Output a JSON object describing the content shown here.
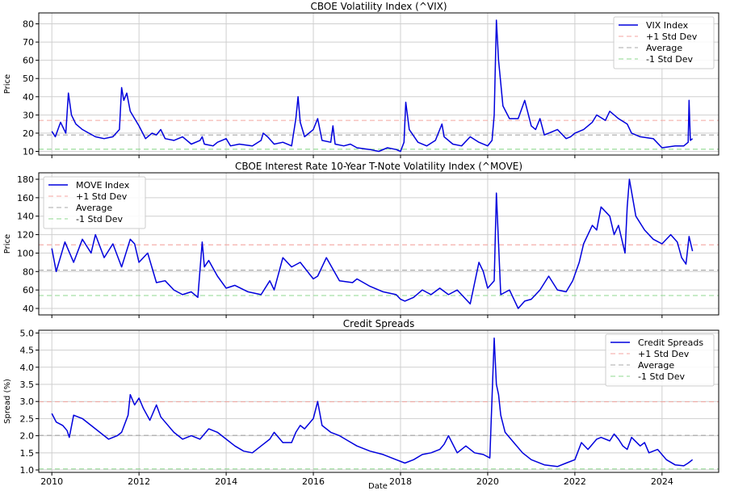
{
  "figure": {
    "xlabel": "Date"
  },
  "chart_data": [
    {
      "type": "line",
      "title": "CBOE Volatility Index (^VIX)",
      "ylabel": "Price",
      "xlim": [
        2009.7,
        2025.3
      ],
      "ylim": [
        8,
        86
      ],
      "yticks": [
        10,
        20,
        30,
        40,
        50,
        60,
        70,
        80
      ],
      "xticks": [
        2010,
        2012,
        2014,
        2016,
        2018,
        2020,
        2022,
        2024
      ],
      "grid": true,
      "legend_position": "top-right",
      "series": [
        {
          "name": "VIX Index",
          "color": "#0000dd",
          "x": [
            2010.0,
            2010.08,
            2010.2,
            2010.32,
            2010.38,
            2010.45,
            2010.55,
            2010.7,
            2010.85,
            2011.0,
            2011.2,
            2011.4,
            2011.55,
            2011.6,
            2011.65,
            2011.72,
            2011.8,
            2011.9,
            2012.0,
            2012.15,
            2012.3,
            2012.4,
            2012.5,
            2012.6,
            2012.8,
            2013.0,
            2013.2,
            2013.4,
            2013.45,
            2013.5,
            2013.7,
            2013.8,
            2014.0,
            2014.1,
            2014.3,
            2014.6,
            2014.8,
            2014.85,
            2014.95,
            2015.1,
            2015.3,
            2015.5,
            2015.6,
            2015.65,
            2015.7,
            2015.8,
            2016.0,
            2016.1,
            2016.2,
            2016.4,
            2016.45,
            2016.5,
            2016.7,
            2016.85,
            2017.0,
            2017.3,
            2017.5,
            2017.7,
            2017.9,
            2018.0,
            2018.08,
            2018.12,
            2018.2,
            2018.4,
            2018.6,
            2018.8,
            2018.95,
            2019.0,
            2019.2,
            2019.4,
            2019.6,
            2019.8,
            2020.0,
            2020.1,
            2020.15,
            2020.2,
            2020.25,
            2020.35,
            2020.5,
            2020.7,
            2020.85,
            2021.0,
            2021.1,
            2021.2,
            2021.3,
            2021.4,
            2021.6,
            2021.8,
            2021.9,
            2022.0,
            2022.2,
            2022.4,
            2022.5,
            2022.7,
            2022.8,
            2023.0,
            2023.2,
            2023.3,
            2023.5,
            2023.8,
            2024.0,
            2024.3,
            2024.5,
            2024.6,
            2024.62,
            2024.65,
            2024.7
          ],
          "y": [
            21,
            18,
            26,
            20,
            42,
            30,
            25,
            22,
            20,
            18,
            17,
            18,
            22,
            45,
            38,
            42,
            32,
            28,
            24,
            17,
            20,
            19,
            22,
            17,
            16,
            18,
            14,
            16,
            18,
            14,
            13,
            15,
            17,
            13,
            14,
            13,
            16,
            20,
            18,
            14,
            15,
            13,
            28,
            40,
            26,
            18,
            22,
            28,
            16,
            15,
            24,
            14,
            13,
            14,
            12,
            11,
            10,
            12,
            11,
            10,
            15,
            37,
            22,
            15,
            13,
            16,
            25,
            18,
            14,
            13,
            18,
            15,
            13,
            16,
            30,
            82,
            60,
            35,
            28,
            28,
            38,
            24,
            22,
            28,
            19,
            20,
            22,
            17,
            18,
            20,
            22,
            26,
            30,
            27,
            32,
            28,
            25,
            20,
            18,
            17,
            12,
            13,
            13,
            15,
            38,
            16,
            17
          ]
        }
      ],
      "reference_lines": [
        {
          "name": "+1 Std Dev",
          "value": 27.0,
          "color": "#f4a6a0"
        },
        {
          "name": "Average",
          "value": 19.0,
          "color": "#a9a9a9"
        },
        {
          "name": "-1 Std Dev",
          "value": 11.2,
          "color": "#8fd88f"
        }
      ]
    },
    {
      "type": "line",
      "title": "CBOE Interest Rate 10-Year T-Note Volatility Index (^MOVE)",
      "ylabel": "Price",
      "xlim": [
        2009.7,
        2025.3
      ],
      "ylim": [
        33,
        187
      ],
      "yticks": [
        40,
        60,
        80,
        100,
        120,
        140,
        160,
        180
      ],
      "xticks": [
        2010,
        2012,
        2014,
        2016,
        2018,
        2020,
        2022,
        2024
      ],
      "grid": true,
      "legend_position": "top-left",
      "series": [
        {
          "name": "MOVE Index",
          "color": "#0000dd",
          "x": [
            2010.0,
            2010.1,
            2010.3,
            2010.5,
            2010.7,
            2010.9,
            2011.0,
            2011.2,
            2011.4,
            2011.6,
            2011.8,
            2011.9,
            2012.0,
            2012.2,
            2012.4,
            2012.6,
            2012.8,
            2013.0,
            2013.2,
            2013.35,
            2013.45,
            2013.5,
            2013.6,
            2013.8,
            2014.0,
            2014.2,
            2014.5,
            2014.8,
            2015.0,
            2015.1,
            2015.3,
            2015.5,
            2015.7,
            2015.9,
            2016.0,
            2016.1,
            2016.3,
            2016.6,
            2016.9,
            2017.0,
            2017.3,
            2017.6,
            2017.9,
            2018.0,
            2018.1,
            2018.3,
            2018.5,
            2018.7,
            2018.9,
            2019.1,
            2019.3,
            2019.5,
            2019.6,
            2019.8,
            2019.9,
            2020.0,
            2020.15,
            2020.2,
            2020.25,
            2020.3,
            2020.5,
            2020.7,
            2020.85,
            2021.0,
            2021.2,
            2021.4,
            2021.6,
            2021.8,
            2021.95,
            2022.1,
            2022.2,
            2022.4,
            2022.5,
            2022.6,
            2022.8,
            2022.9,
            2023.0,
            2023.15,
            2023.2,
            2023.25,
            2023.4,
            2023.6,
            2023.8,
            2024.0,
            2024.2,
            2024.35,
            2024.45,
            2024.55,
            2024.62,
            2024.7
          ],
          "y": [
            105,
            80,
            112,
            90,
            115,
            100,
            120,
            95,
            110,
            85,
            115,
            110,
            90,
            100,
            68,
            70,
            60,
            55,
            58,
            52,
            112,
            85,
            92,
            75,
            62,
            65,
            58,
            55,
            70,
            60,
            95,
            85,
            90,
            78,
            72,
            75,
            95,
            70,
            68,
            72,
            64,
            58,
            55,
            50,
            48,
            52,
            60,
            55,
            62,
            55,
            60,
            50,
            45,
            90,
            80,
            62,
            70,
            165,
            110,
            55,
            60,
            40,
            48,
            50,
            60,
            75,
            60,
            58,
            70,
            90,
            110,
            130,
            125,
            150,
            140,
            120,
            130,
            100,
            150,
            180,
            140,
            125,
            115,
            110,
            120,
            112,
            95,
            88,
            118,
            102
          ]
        }
      ],
      "reference_lines": [
        {
          "name": "+1 Std Dev",
          "value": 109.0,
          "color": "#f4a6a0"
        },
        {
          "name": "Average",
          "value": 81.5,
          "color": "#a9a9a9"
        },
        {
          "name": "-1 Std Dev",
          "value": 54.0,
          "color": "#8fd88f"
        }
      ]
    },
    {
      "type": "line",
      "title": "Credit Spreads",
      "ylabel": "Spread (%)",
      "xlim": [
        2009.7,
        2025.3
      ],
      "ylim": [
        0.93,
        5.08
      ],
      "yticks": [
        1.0,
        1.5,
        2.0,
        2.5,
        3.0,
        3.5,
        4.0,
        4.5,
        5.0
      ],
      "xticks": [
        2010,
        2012,
        2014,
        2016,
        2018,
        2020,
        2022,
        2024
      ],
      "grid": true,
      "legend_position": "top-right",
      "series": [
        {
          "name": "Credit Spreads",
          "color": "#0000dd",
          "x": [
            2010.0,
            2010.1,
            2010.25,
            2010.35,
            2010.4,
            2010.5,
            2010.7,
            2010.9,
            2011.1,
            2011.3,
            2011.5,
            2011.6,
            2011.75,
            2011.8,
            2011.9,
            2012.0,
            2012.1,
            2012.25,
            2012.4,
            2012.5,
            2012.6,
            2012.8,
            2013.0,
            2013.2,
            2013.4,
            2013.6,
            2013.8,
            2014.0,
            2014.2,
            2014.4,
            2014.6,
            2014.8,
            2015.0,
            2015.1,
            2015.3,
            2015.5,
            2015.6,
            2015.7,
            2015.8,
            2016.0,
            2016.1,
            2016.2,
            2016.4,
            2016.6,
            2016.8,
            2017.0,
            2017.3,
            2017.6,
            2017.9,
            2018.1,
            2018.3,
            2018.5,
            2018.7,
            2018.9,
            2019.0,
            2019.1,
            2019.3,
            2019.5,
            2019.7,
            2019.9,
            2020.05,
            2020.15,
            2020.2,
            2020.25,
            2020.3,
            2020.4,
            2020.6,
            2020.8,
            2021.0,
            2021.3,
            2021.6,
            2021.8,
            2022.0,
            2022.15,
            2022.3,
            2022.5,
            2022.6,
            2022.8,
            2022.9,
            2023.0,
            2023.1,
            2023.2,
            2023.3,
            2023.5,
            2023.6,
            2023.7,
            2023.9,
            2024.1,
            2024.3,
            2024.5,
            2024.6,
            2024.7
          ],
          "y": [
            2.65,
            2.4,
            2.3,
            2.15,
            1.95,
            2.6,
            2.5,
            2.3,
            2.1,
            1.9,
            2.0,
            2.1,
            2.6,
            3.2,
            2.9,
            3.1,
            2.8,
            2.45,
            2.9,
            2.55,
            2.4,
            2.1,
            1.9,
            2.0,
            1.9,
            2.2,
            2.1,
            1.9,
            1.7,
            1.55,
            1.5,
            1.7,
            1.9,
            2.1,
            1.8,
            1.8,
            2.1,
            2.3,
            2.2,
            2.5,
            3.0,
            2.3,
            2.1,
            2.0,
            1.85,
            1.7,
            1.55,
            1.45,
            1.3,
            1.2,
            1.3,
            1.45,
            1.5,
            1.6,
            1.75,
            2.0,
            1.5,
            1.7,
            1.5,
            1.45,
            1.35,
            4.85,
            3.5,
            3.2,
            2.6,
            2.1,
            1.8,
            1.5,
            1.3,
            1.15,
            1.1,
            1.2,
            1.3,
            1.8,
            1.6,
            1.9,
            1.95,
            1.85,
            2.05,
            1.9,
            1.7,
            1.6,
            1.95,
            1.7,
            1.8,
            1.5,
            1.6,
            1.3,
            1.15,
            1.12,
            1.2,
            1.3
          ]
        }
      ],
      "reference_lines": [
        {
          "name": "+1 Std Dev",
          "value": 2.99,
          "color": "#f4a6a0"
        },
        {
          "name": "Average",
          "value": 2.01,
          "color": "#a9a9a9"
        },
        {
          "name": "-1 Std Dev",
          "value": 1.03,
          "color": "#8fd88f"
        }
      ]
    }
  ]
}
